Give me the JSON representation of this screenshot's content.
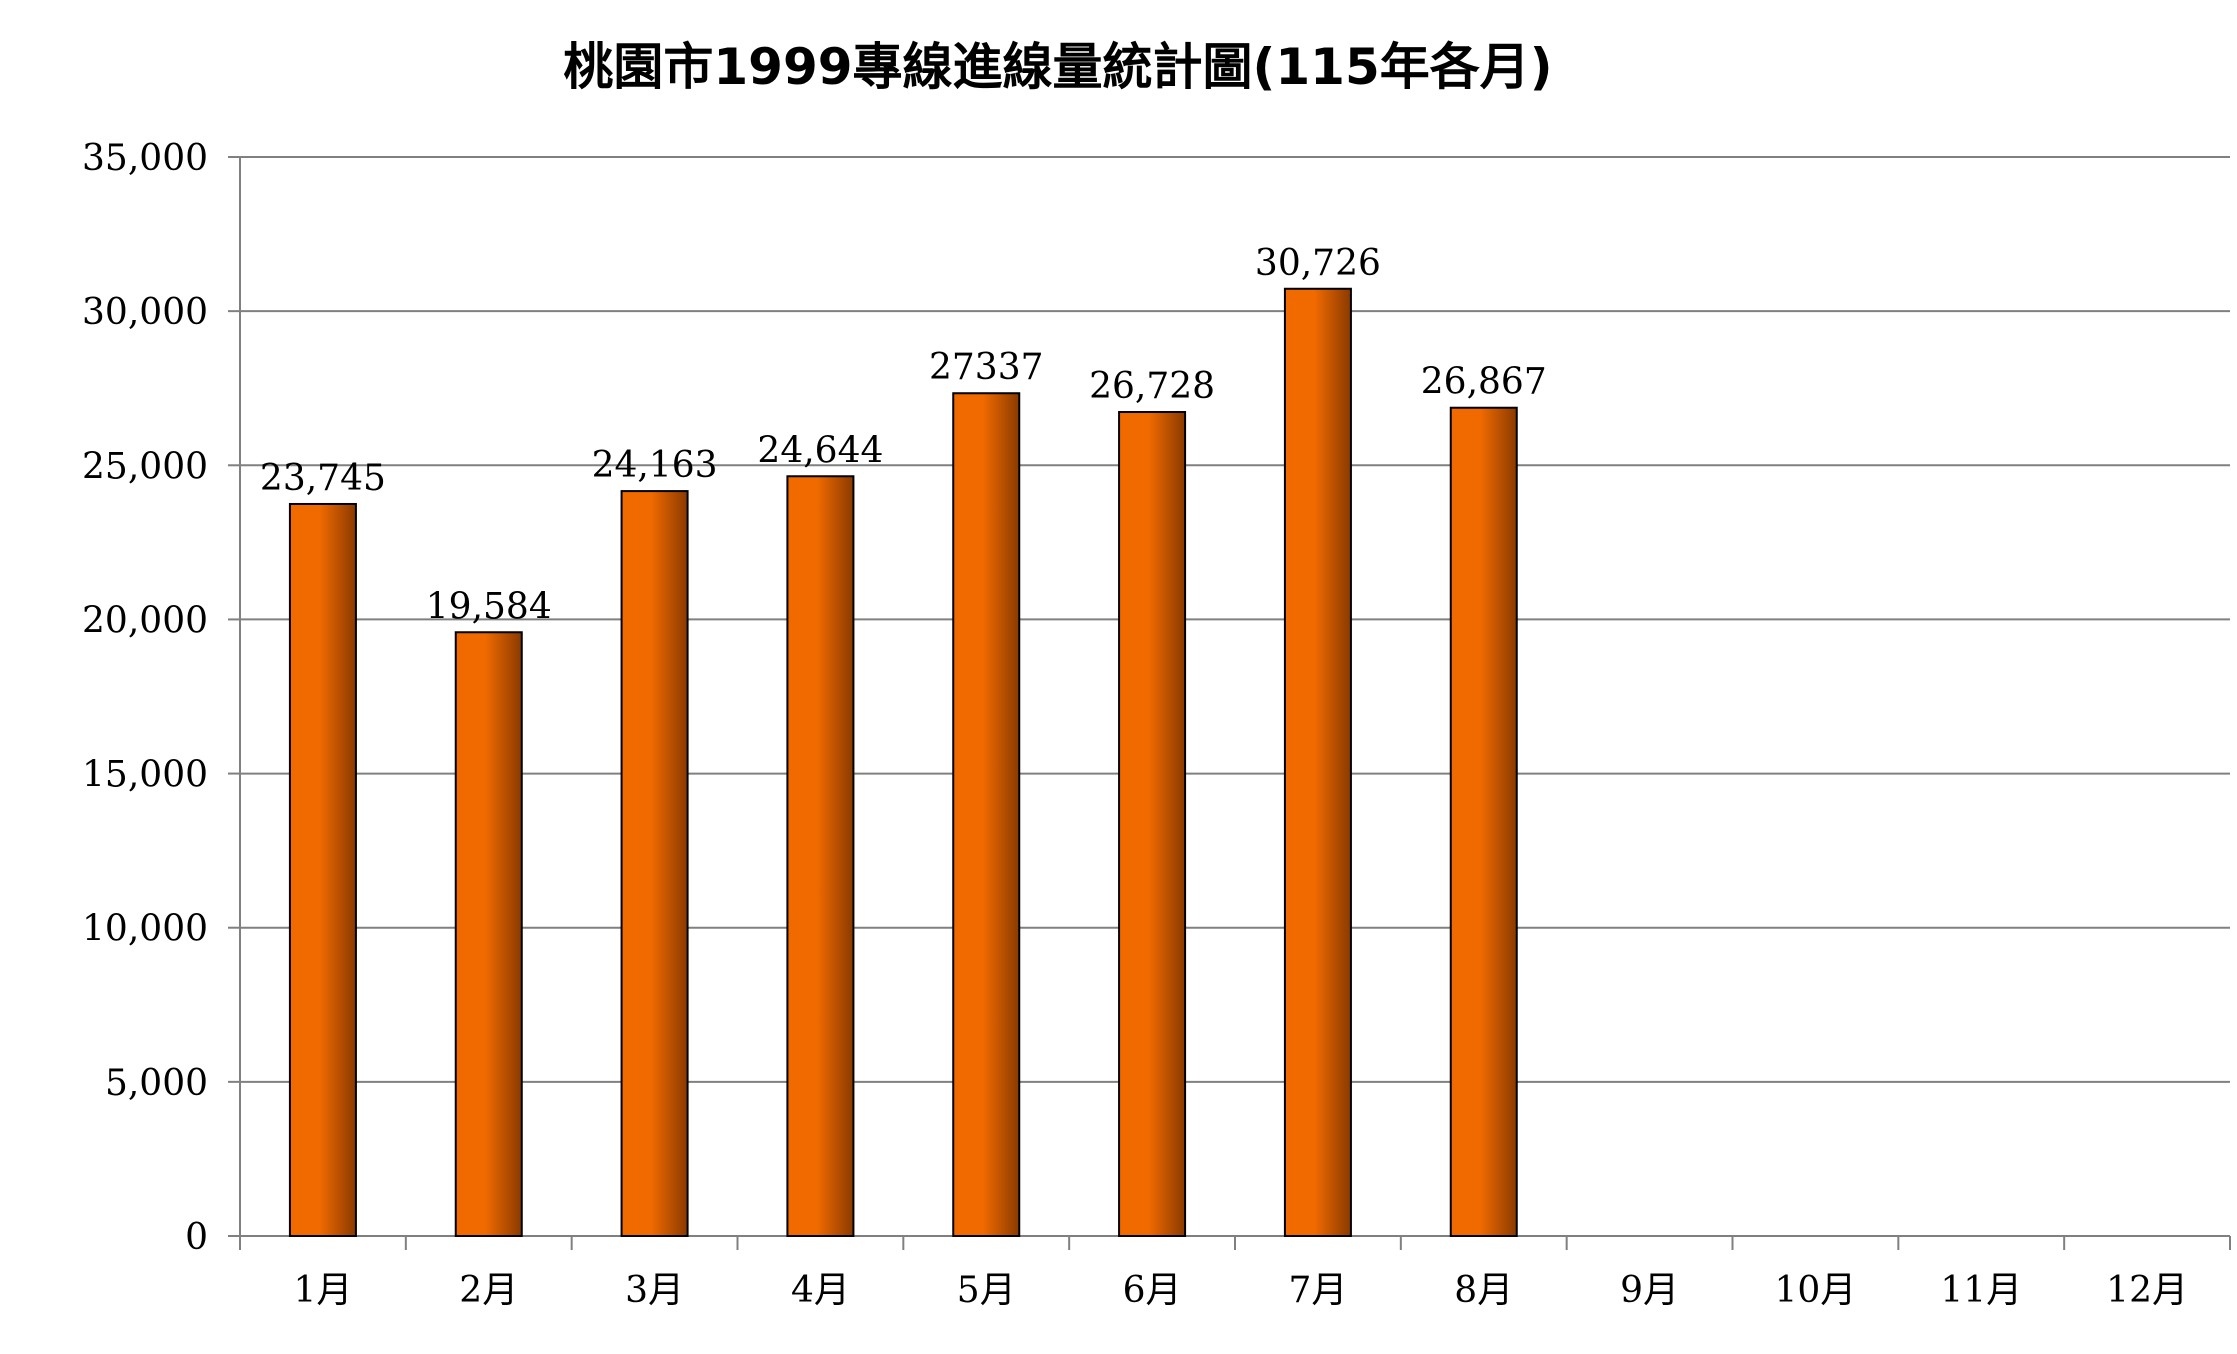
{
  "chart_data": {
    "type": "bar",
    "title": "桃園市1999專線進線量統計圖(115年各月)",
    "xlabel": "",
    "ylabel": "",
    "categories": [
      "1月",
      "2月",
      "3月",
      "4月",
      "5月",
      "6月",
      "7月",
      "8月",
      "9月",
      "10月",
      "11月",
      "12月"
    ],
    "values": [
      23745,
      19584,
      24163,
      24644,
      27337,
      26728,
      30726,
      26867,
      null,
      null,
      null,
      null
    ],
    "data_labels": [
      "23,745",
      "19,584",
      "24,163",
      "24,644",
      "27337",
      "26,728",
      "30,726",
      "26,867",
      "",
      "",
      "",
      ""
    ],
    "ylim": [
      0,
      35000
    ],
    "y_ticks": [
      0,
      5000,
      10000,
      15000,
      20000,
      25000,
      30000,
      35000
    ],
    "y_tick_labels": [
      "0",
      "5,000",
      "10,000",
      "15,000",
      "20,000",
      "25,000",
      "30,000",
      "35,000"
    ],
    "grid": true,
    "legend": "none",
    "colors": {
      "bar_light": "#f06a00",
      "bar_dark": "#8a3a00",
      "bar_stroke": "#000000",
      "grid": "#808080",
      "axis": "#808080"
    }
  }
}
